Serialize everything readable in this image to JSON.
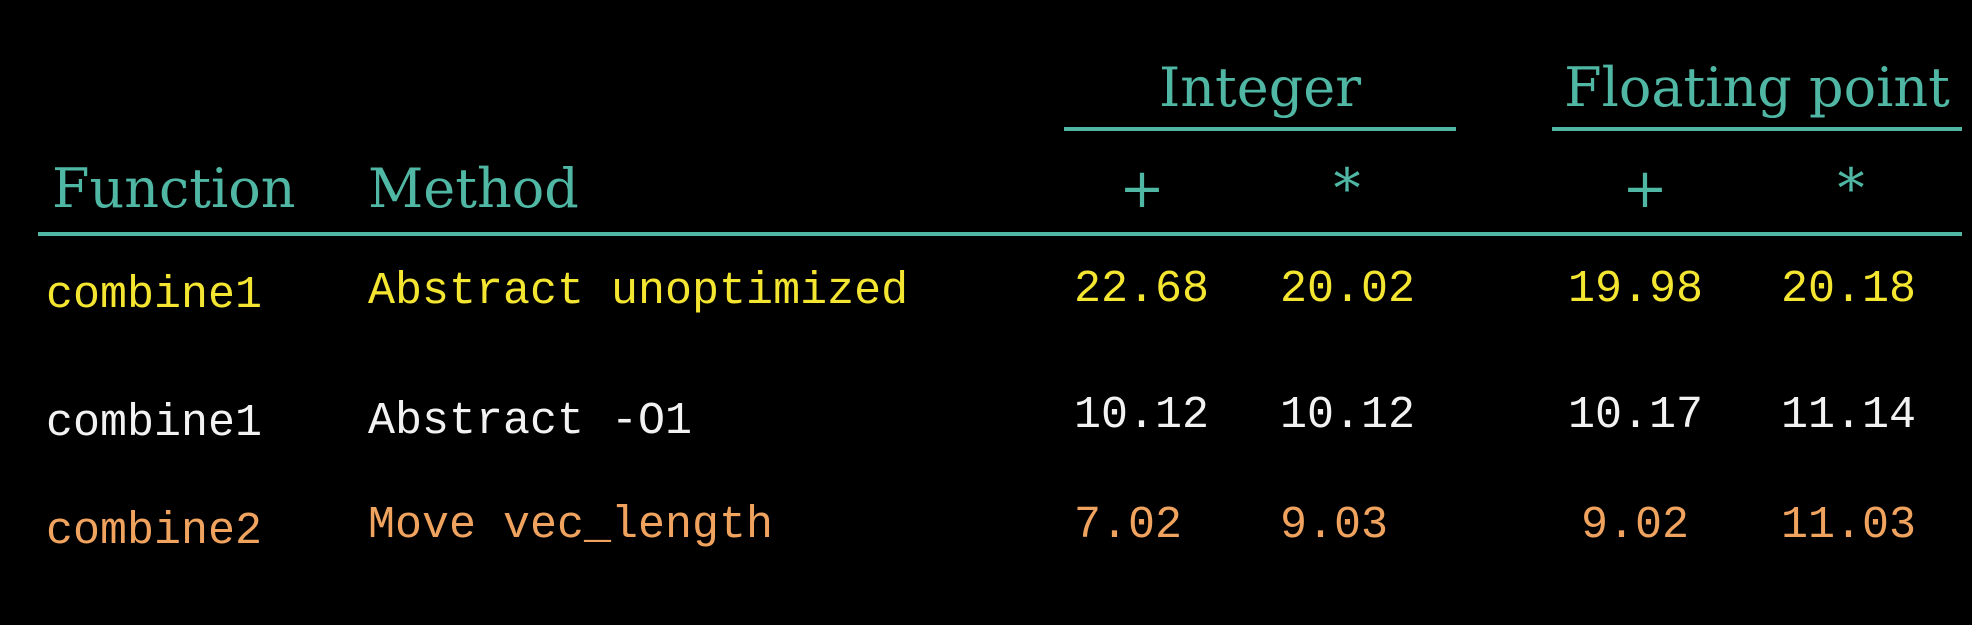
{
  "table": {
    "groups": [
      {
        "label": "Integer"
      },
      {
        "label": "Floating point"
      }
    ],
    "headers": {
      "function": "Function",
      "method": "Method",
      "ops": [
        "+",
        "*",
        "+",
        "*"
      ]
    },
    "rows": [
      {
        "function": "combine1",
        "method": "Abstract unoptimized",
        "values": [
          "22.68",
          "20.02",
          "19.98",
          "20.18"
        ],
        "color": "#f4e531"
      },
      {
        "function": "combine1",
        "method": "Abstract -O1",
        "values": [
          "10.12",
          "10.12",
          "10.17",
          "11.14"
        ],
        "color": "#f2f2f2"
      },
      {
        "function": "combine2",
        "method": "Move vec_length",
        "values": [
          "7.02",
          "9.03",
          "9.02",
          "11.03"
        ],
        "color": "#f0a35e"
      }
    ],
    "accent_color": "#4fb7a3"
  }
}
